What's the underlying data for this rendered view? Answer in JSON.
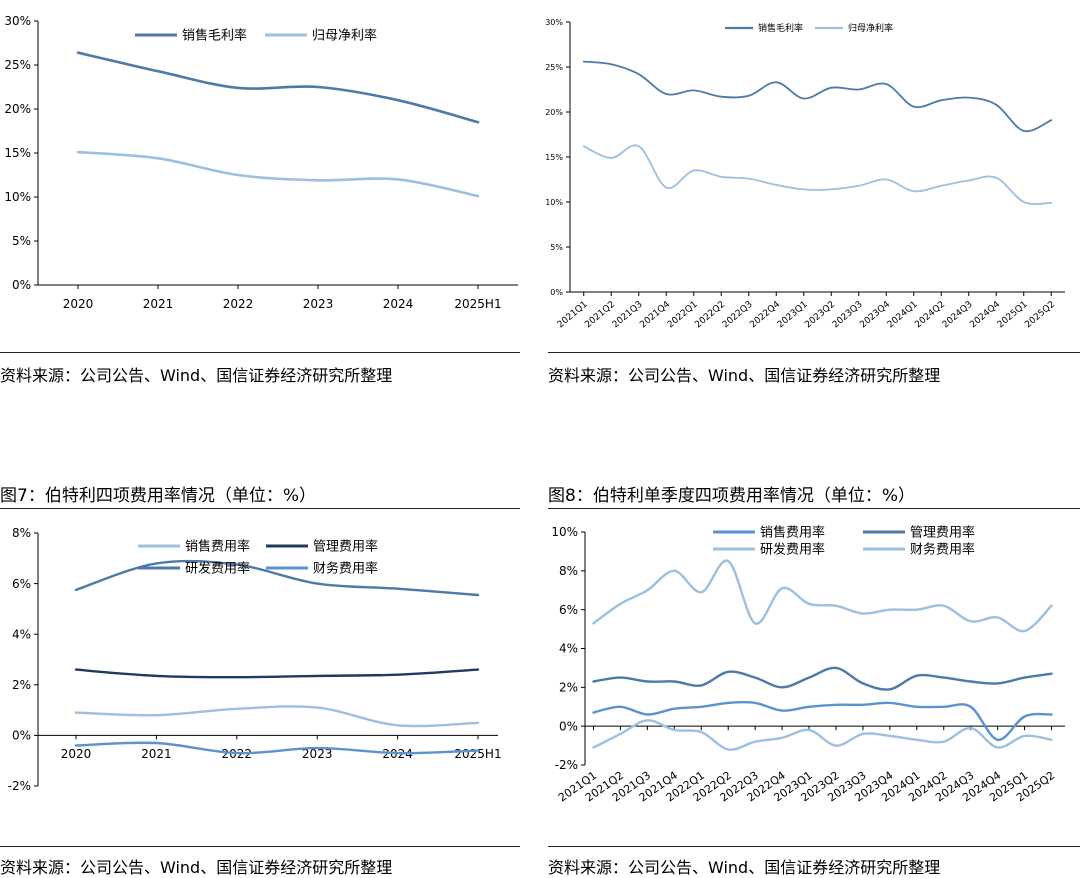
{
  "colors": {
    "dark": "#1f3a5f",
    "mid": "#4d7aa8",
    "light": "#9dbfe0",
    "blue": "#5a93cf"
  },
  "sources": {
    "tl": "资料来源：公司公告、Wind、国信证券经济研究所整理",
    "tr": "资料来源：公司公告、Wind、国信证券经济研究所整理",
    "bl": "资料来源：公司公告、Wind、国信证券经济研究所整理",
    "br": "资料来源：公司公告、Wind、国信证券经济研究所整理"
  },
  "titles": {
    "fig7": "图7：伯特利四项费用率情况（单位：%）",
    "fig8": "图8：伯特利单季度四项费用率情况（单位：%）"
  },
  "chart_data": [
    {
      "type": "line",
      "x": [
        "2020",
        "2021",
        "2022",
        "2023",
        "2024",
        "2025H1"
      ],
      "ylim": [
        0,
        30
      ],
      "yticks": [
        "0%",
        "5%",
        "10%",
        "15%",
        "20%",
        "25%",
        "30%"
      ],
      "series": [
        {
          "name": "销售毛利率",
          "values": [
            26.4,
            24.3,
            22.4,
            22.5,
            21.0,
            18.5
          ]
        },
        {
          "name": "归母净利率",
          "values": [
            15.1,
            14.4,
            12.5,
            11.9,
            12.0,
            10.1
          ]
        }
      ]
    },
    {
      "type": "line",
      "x": [
        "2021Q1",
        "2021Q2",
        "2021Q3",
        "2021Q4",
        "2022Q1",
        "2022Q2",
        "2022Q3",
        "2022Q4",
        "2023Q1",
        "2023Q2",
        "2023Q3",
        "2023Q4",
        "2024Q1",
        "2024Q2",
        "2024Q3",
        "2024Q4",
        "2025Q1",
        "2025Q2"
      ],
      "ylim": [
        0,
        30
      ],
      "yticks": [
        "0%",
        "5%",
        "10%",
        "15%",
        "20%",
        "25%",
        "30%"
      ],
      "series": [
        {
          "name": "销售毛利率",
          "values": [
            25.6,
            25.3,
            24.2,
            22.0,
            22.4,
            21.7,
            21.8,
            23.3,
            21.5,
            22.7,
            22.5,
            23.1,
            20.6,
            21.3,
            21.6,
            20.8,
            17.9,
            19.1
          ]
        },
        {
          "name": "归母净利率",
          "values": [
            16.2,
            14.9,
            16.2,
            11.6,
            13.5,
            12.8,
            12.6,
            11.9,
            11.4,
            11.4,
            11.8,
            12.5,
            11.2,
            11.8,
            12.4,
            12.7,
            10.0,
            9.9
          ]
        }
      ]
    },
    {
      "type": "line",
      "x": [
        "2020",
        "2021",
        "2022",
        "2023",
        "2024",
        "2025H1"
      ],
      "ylim": [
        -2,
        8
      ],
      "yticks": [
        "-2%",
        "0%",
        "2%",
        "4%",
        "6%",
        "8%"
      ],
      "series": [
        {
          "name": "销售费用率",
          "values": [
            0.9,
            0.8,
            1.05,
            1.1,
            0.4,
            0.5
          ]
        },
        {
          "name": "管理费用率",
          "values": [
            2.6,
            2.35,
            2.3,
            2.35,
            2.4,
            2.6
          ]
        },
        {
          "name": "研发费用率",
          "values": [
            5.75,
            6.8,
            6.75,
            6.0,
            5.8,
            5.55
          ]
        },
        {
          "name": "财务费用率",
          "values": [
            -0.4,
            -0.3,
            -0.7,
            -0.5,
            -0.7,
            -0.6
          ]
        }
      ]
    },
    {
      "type": "line",
      "x": [
        "2021Q1",
        "2021Q2",
        "2021Q3",
        "2021Q4",
        "2022Q1",
        "2022Q2",
        "2022Q3",
        "2022Q4",
        "2023Q1",
        "2023Q2",
        "2023Q3",
        "2023Q4",
        "2024Q1",
        "2024Q2",
        "2024Q3",
        "2024Q4",
        "2025Q1",
        "2025Q2"
      ],
      "ylim": [
        -2,
        10
      ],
      "yticks": [
        "-2%",
        "0%",
        "2%",
        "4%",
        "6%",
        "8%",
        "10%"
      ],
      "series": [
        {
          "name": "销售费用率",
          "values": [
            0.7,
            1.0,
            0.6,
            0.9,
            1.0,
            1.2,
            1.2,
            0.8,
            1.0,
            1.1,
            1.1,
            1.2,
            1.0,
            1.0,
            1.0,
            -0.7,
            0.5,
            0.6
          ]
        },
        {
          "name": "管理费用率",
          "values": [
            2.3,
            2.5,
            2.3,
            2.3,
            2.1,
            2.8,
            2.5,
            2.0,
            2.5,
            3.0,
            2.2,
            1.9,
            2.6,
            2.5,
            2.3,
            2.2,
            2.5,
            2.7
          ]
        },
        {
          "name": "研发费用率",
          "values": [
            5.3,
            6.3,
            7.0,
            8.0,
            6.9,
            8.5,
            5.3,
            7.1,
            6.3,
            6.2,
            5.8,
            6.0,
            6.0,
            6.2,
            5.4,
            5.6,
            4.9,
            6.2
          ]
        },
        {
          "name": "财务费用率",
          "values": [
            -1.1,
            -0.4,
            0.3,
            -0.2,
            -0.3,
            -1.2,
            -0.8,
            -0.6,
            -0.2,
            -1.0,
            -0.4,
            -0.5,
            -0.7,
            -0.8,
            -0.1,
            -1.1,
            -0.5,
            -0.7
          ]
        }
      ]
    }
  ]
}
